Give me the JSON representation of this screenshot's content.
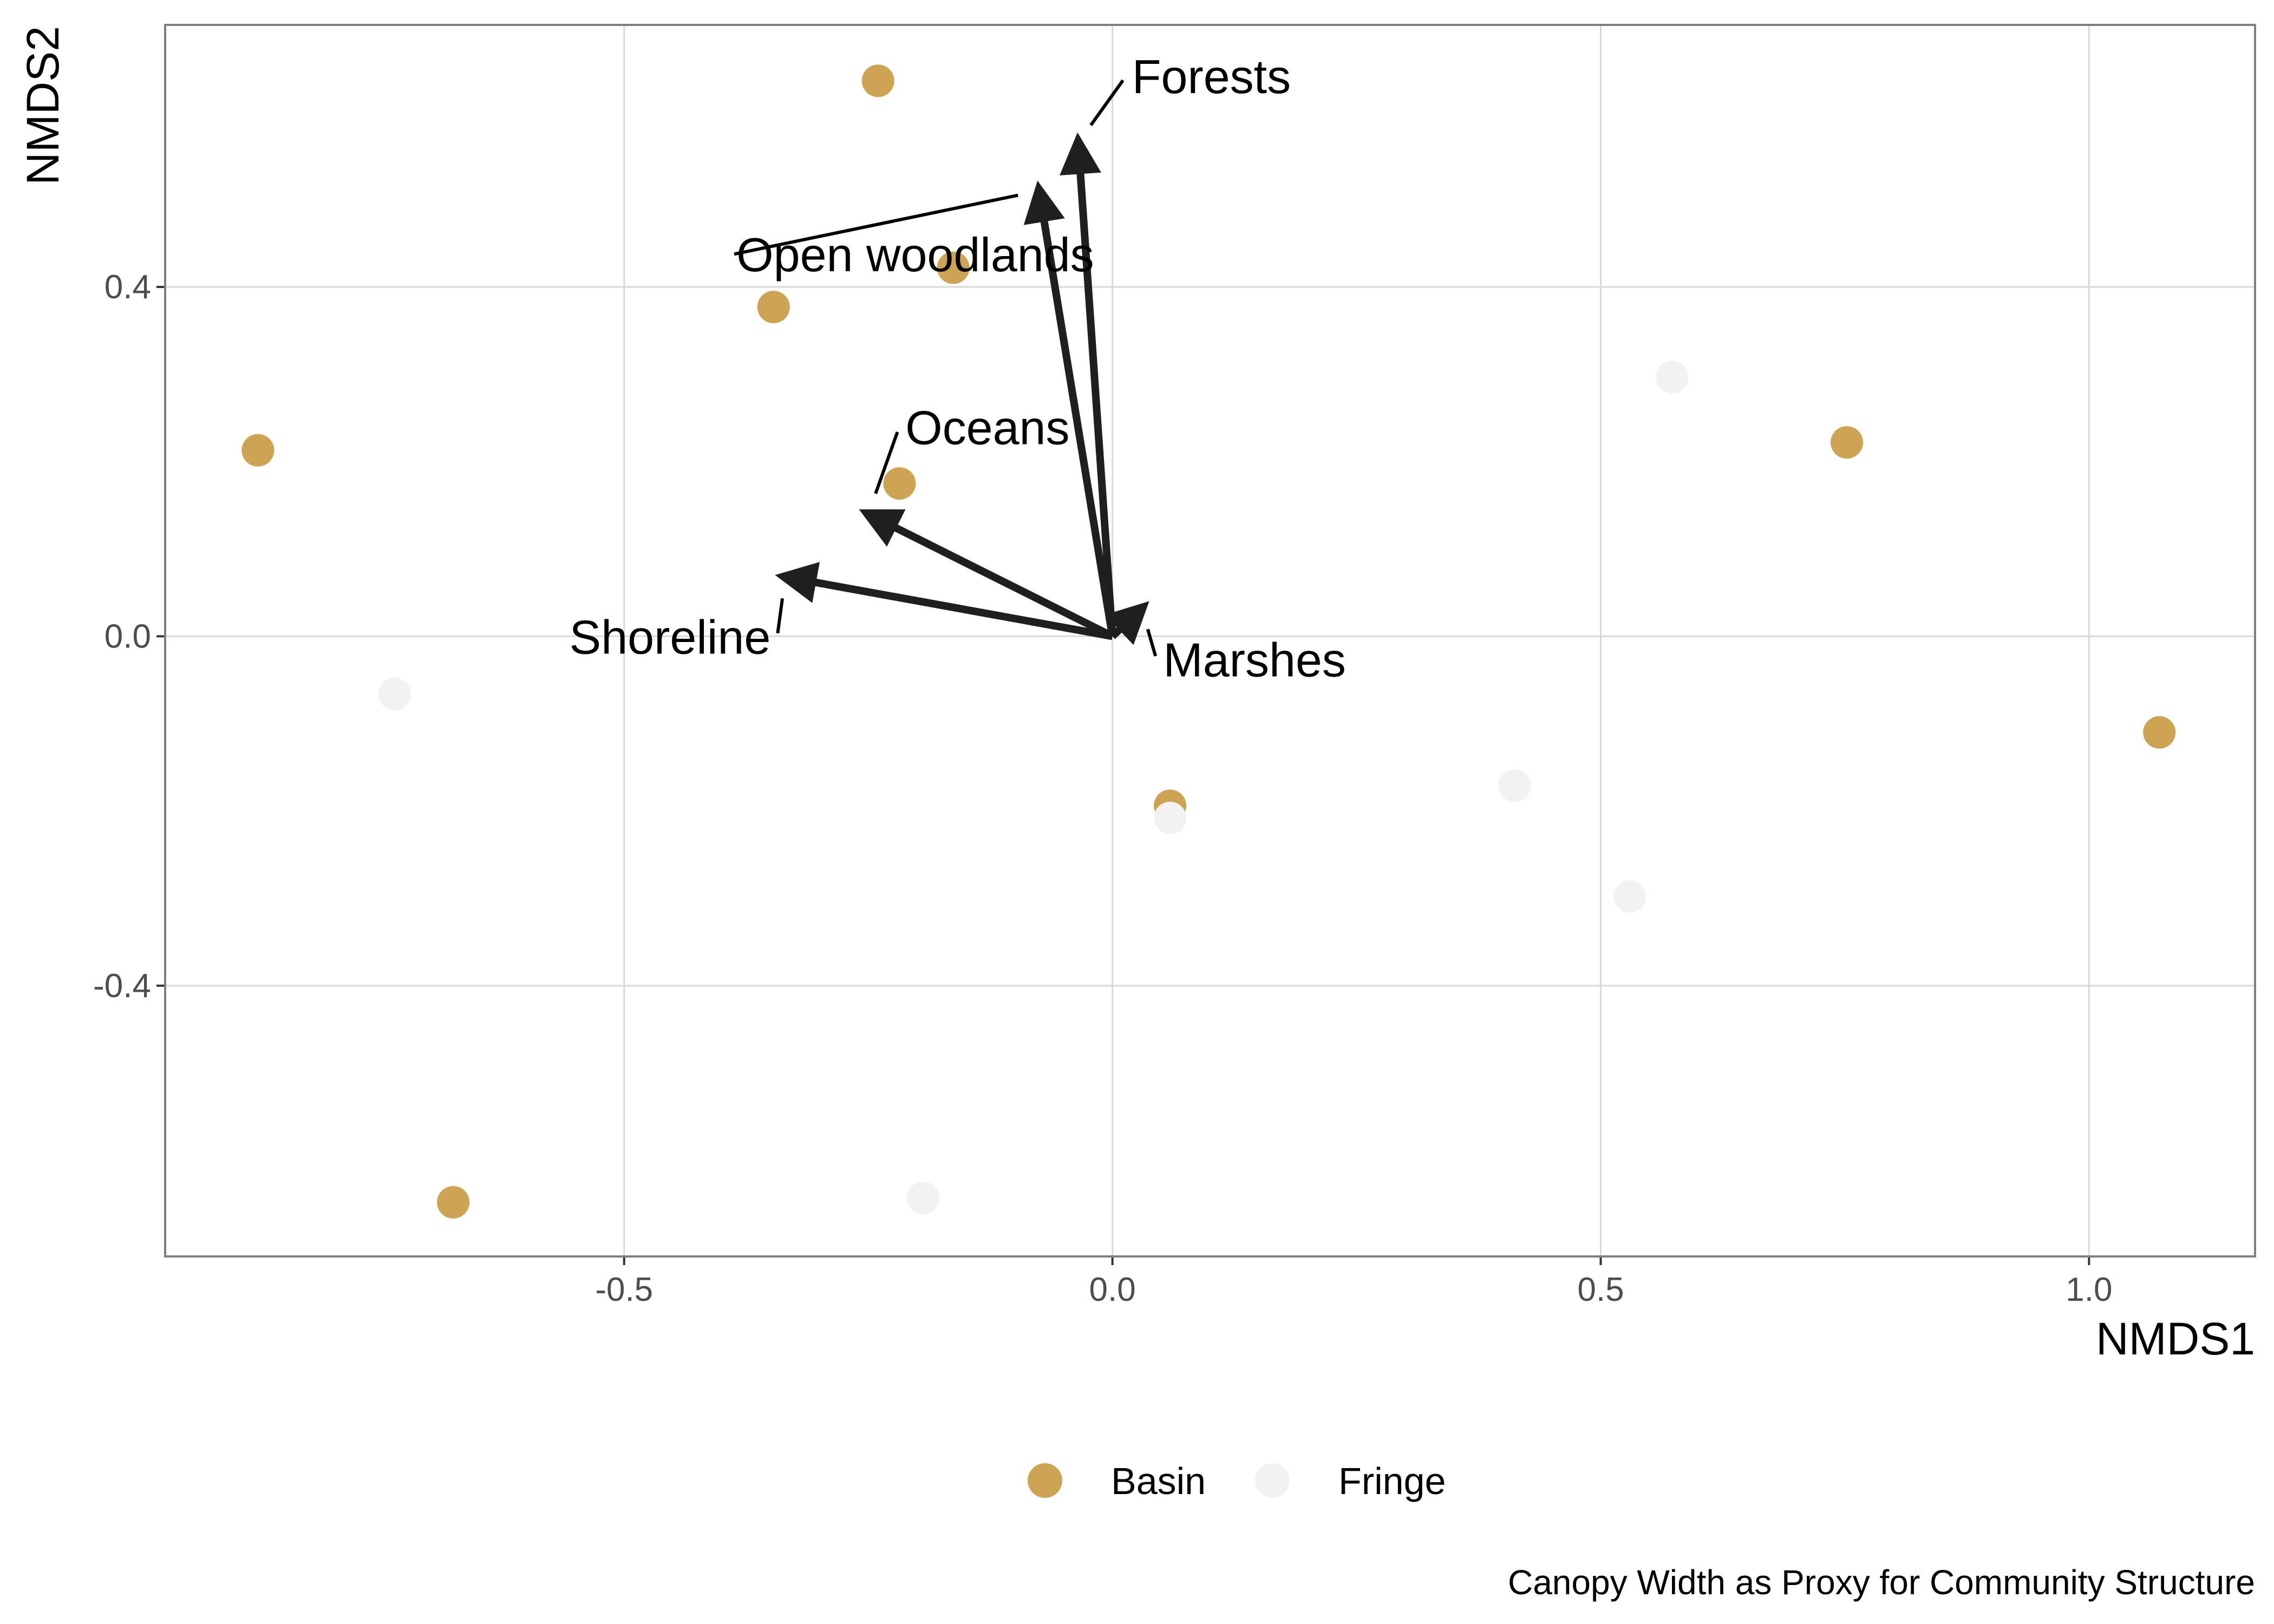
{
  "chart_data": {
    "type": "scatter",
    "xlabel": "NMDS1",
    "ylabel": "NMDS2",
    "caption": "Canopy Width as Proxy for Community Structure",
    "xlim": [
      -0.97,
      1.17
    ],
    "ylim": [
      -0.71,
      0.7
    ],
    "x_ticks": [
      -0.5,
      0.0,
      0.5,
      1.0
    ],
    "x_tick_labels": [
      "-0.5",
      "0.0",
      "0.5",
      "1.0"
    ],
    "y_ticks": [
      -0.4,
      0.0,
      0.4
    ],
    "y_tick_labels": [
      "-0.4",
      "0.0",
      "0.4"
    ],
    "grid": true,
    "legend_position": "bottom",
    "series": [
      {
        "name": "Basin",
        "color": "#CDA452",
        "points": [
          {
            "x": -0.875,
            "y": 0.213
          },
          {
            "x": -0.347,
            "y": 0.377
          },
          {
            "x": -0.24,
            "y": 0.636
          },
          {
            "x": -0.163,
            "y": 0.422
          },
          {
            "x": -0.218,
            "y": 0.175
          },
          {
            "x": -0.675,
            "y": -0.648
          },
          {
            "x": 0.059,
            "y": -0.194
          },
          {
            "x": 0.752,
            "y": 0.222
          },
          {
            "x": 1.072,
            "y": -0.11
          }
        ]
      },
      {
        "name": "Fringe",
        "color": "#F2F2F2",
        "points": [
          {
            "x": -0.735,
            "y": -0.066
          },
          {
            "x": -0.194,
            "y": -0.643
          },
          {
            "x": 0.059,
            "y": -0.208
          },
          {
            "x": 0.412,
            "y": -0.171
          },
          {
            "x": 0.53,
            "y": -0.298
          },
          {
            "x": 0.573,
            "y": 0.297
          }
        ]
      }
    ],
    "vectors": [
      {
        "name": "Forests",
        "x": -0.035,
        "y": 0.565,
        "label_x": 0.02,
        "label_y": 0.622,
        "anchor": "start"
      },
      {
        "name": "Open woodlands",
        "x": -0.075,
        "y": 0.51,
        "label_x": -0.385,
        "label_y": 0.418,
        "anchor": "start"
      },
      {
        "name": "Oceans",
        "x": -0.25,
        "y": 0.14,
        "label_x": -0.212,
        "label_y": 0.22,
        "anchor": "start"
      },
      {
        "name": "Shoreline",
        "x": -0.335,
        "y": 0.068,
        "label_x": -0.35,
        "label_y": -0.02,
        "anchor": "end"
      },
      {
        "name": "Marshes",
        "x": 0.03,
        "y": 0.032,
        "label_x": 0.052,
        "label_y": -0.046,
        "anchor": "start"
      }
    ],
    "vector_color": "#1f1f1f"
  }
}
